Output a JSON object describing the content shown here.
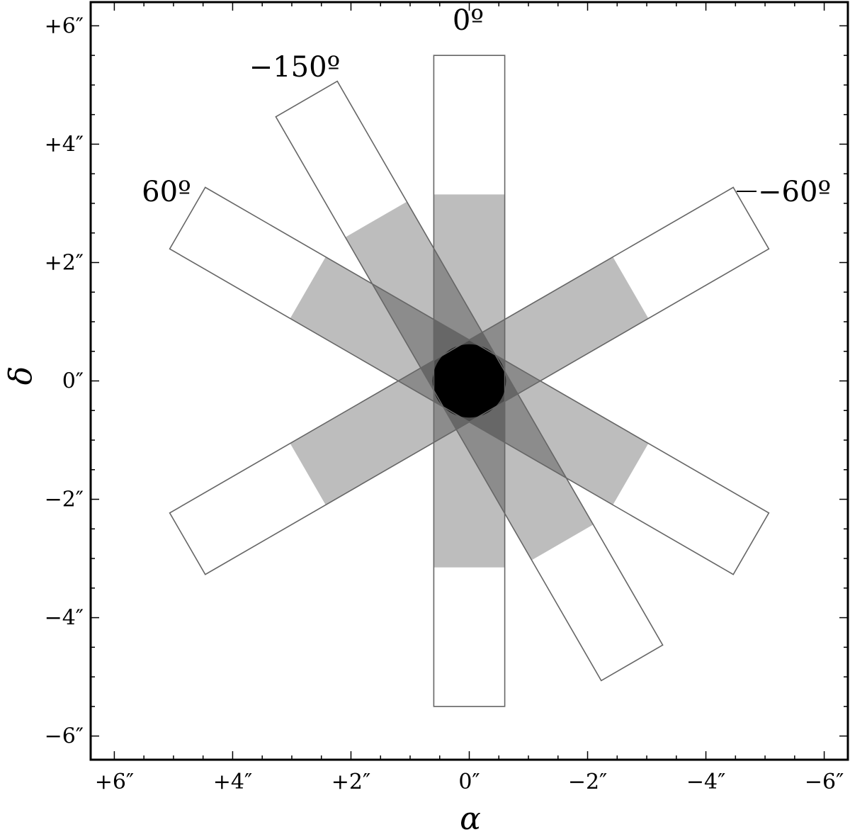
{
  "figure": {
    "xlabel": "α",
    "ylabel": "δ",
    "x_ticks": [
      {
        "value": 6,
        "label": "+6″"
      },
      {
        "value": 4,
        "label": "+4″"
      },
      {
        "value": 2,
        "label": "+2″"
      },
      {
        "value": 0,
        "label": "0″"
      },
      {
        "value": -2,
        "label": "−2″"
      },
      {
        "value": -4,
        "label": "−4″"
      },
      {
        "value": -6,
        "label": "−6″"
      }
    ],
    "y_ticks": [
      {
        "value": 6,
        "label": "+6″"
      },
      {
        "value": 4,
        "label": "+4″"
      },
      {
        "value": 2,
        "label": "+2″"
      },
      {
        "value": 0,
        "label": "0″"
      },
      {
        "value": -2,
        "label": "−2″"
      },
      {
        "value": -4,
        "label": "−4″"
      },
      {
        "value": -6,
        "label": "−6″"
      }
    ],
    "x_range": [
      6.4,
      -6.4
    ],
    "y_range": [
      -6.4,
      6.4
    ],
    "slits": [
      {
        "position_angle": 0,
        "label": "0º",
        "length": 11.0,
        "width": 1.2,
        "shaded_length": 6.3
      },
      {
        "position_angle": -150,
        "label": "−150º",
        "length": 11.0,
        "width": 1.2,
        "shaded_length": 6.3
      },
      {
        "position_angle": 60,
        "label": "60º",
        "length": 11.0,
        "width": 1.2,
        "shaded_length": 6.3
      },
      {
        "position_angle": -60,
        "label": "−60º",
        "length": 11.0,
        "width": 1.2,
        "shaded_length": 6.3
      }
    ],
    "colors": {
      "background": "#ffffff",
      "outline": "#666666",
      "shading": "#000000",
      "single_coverage": "#bdbdbd",
      "frame": "#000000"
    }
  }
}
